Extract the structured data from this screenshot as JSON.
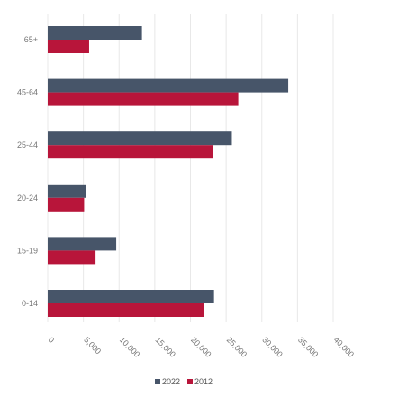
{
  "chart_data": {
    "type": "bar",
    "orientation": "horizontal",
    "categories": [
      "65+",
      "45-64",
      "25-44",
      "20-24",
      "15-19",
      "0-14"
    ],
    "series": [
      {
        "name": "2022",
        "color": "#475569",
        "values": [
          13200,
          33700,
          25800,
          5400,
          9600,
          23300
        ]
      },
      {
        "name": "2012",
        "color": "#b8153a",
        "values": [
          5800,
          26700,
          23100,
          5100,
          6700,
          21900
        ]
      }
    ],
    "xlim": [
      0,
      40000
    ],
    "xticks": [
      0,
      5000,
      10000,
      15000,
      20000,
      25000,
      30000,
      35000,
      40000
    ],
    "xtick_labels": [
      "0",
      "5,000",
      "10,000",
      "15,000",
      "20,000",
      "25,000",
      "30,000",
      "35,000",
      "40,000"
    ],
    "grid": true,
    "legend_position": "bottom-center",
    "title": "",
    "xlabel": "",
    "ylabel": ""
  }
}
